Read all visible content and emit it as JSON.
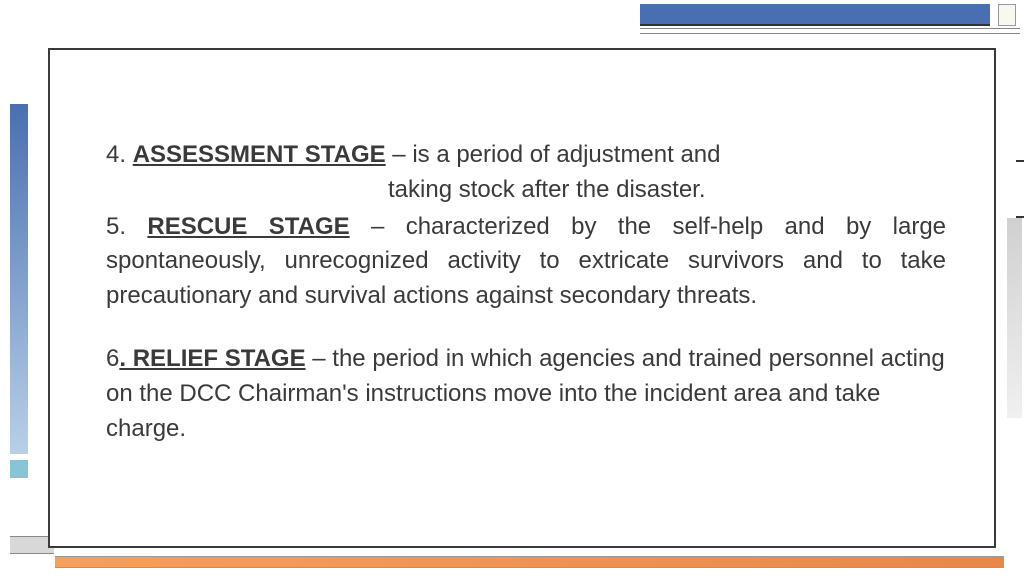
{
  "colors": {
    "blue_bar": "#4a6fb0",
    "light_blue_sq": "#7ba8d4",
    "teal_small": "#88c4d4",
    "orange_bar": "#e8874a",
    "text": "#3a3a3a",
    "frame_border": "#3a3a3a"
  },
  "items": {
    "item4": {
      "number": "4. ",
      "title": "ASSESSMENT STAGE",
      "sep": " – ",
      "line1": "is a period of adjustment and",
      "line2": "taking stock after the disaster."
    },
    "item5": {
      "number": "5. ",
      "title": "RESCUE STAGE",
      "sep": " – ",
      "body": "characterized by the self-help and by large spontaneously, unrecognized activity to extricate survivors and to take precautionary and survival actions against secondary threats."
    },
    "item6": {
      "number": "6",
      "title": ". RELIEF STAGE",
      "sep": " – ",
      "body": "the period in which agencies and trained personnel acting on the DCC Chairman's instructions move into the incident area and take charge."
    }
  }
}
